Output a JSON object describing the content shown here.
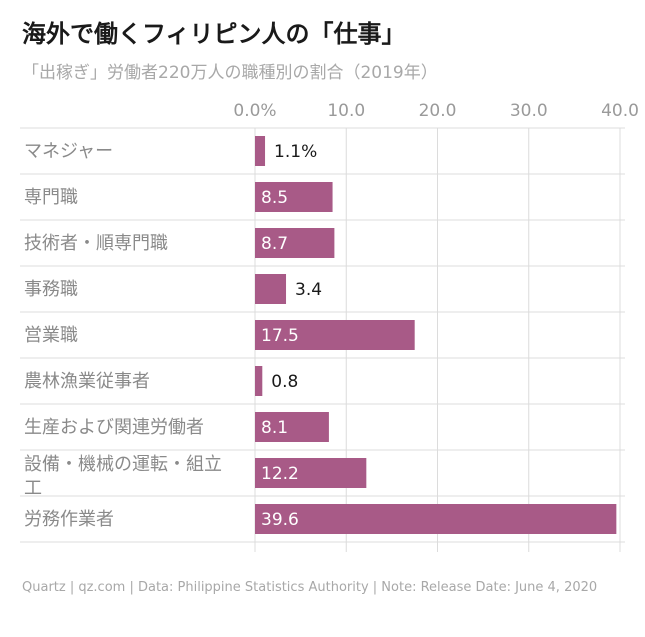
{
  "title": "海外で働くフィリピン人の「仕事」",
  "subtitle": "「出稼ぎ」労働者220万人の職種別の割合（2019年）",
  "footer": "Quartz | qz.com | Data: Philippine Statistics Authority | Note: Release Date: June 4, 2020",
  "colors": {
    "bar": "#a85a87",
    "grid": "#dcdcdc",
    "label_inside": "#ffffff",
    "label_outside": "#1a1a1a"
  },
  "chart_data": {
    "type": "bar",
    "orientation": "horizontal",
    "categories": [
      "マネジャー",
      "専門職",
      "技術者・順専門職",
      "事務職",
      "営業職",
      "農林漁業従事者",
      "生産および関連労働者",
      "設備・機械の運転・組立工",
      "労務作業者"
    ],
    "values": [
      1.1,
      8.5,
      8.7,
      3.4,
      17.5,
      0.8,
      8.1,
      12.2,
      39.6
    ],
    "value_labels": [
      "1.1%",
      "8.5",
      "8.7",
      "3.4",
      "17.5",
      "0.8",
      "8.1",
      "12.2",
      "39.6"
    ],
    "xticks": [
      "0.0%",
      "10.0",
      "20.0",
      "30.0",
      "40.0"
    ],
    "xlim": [
      0,
      40
    ],
    "title": "海外で働くフィリピン人の「仕事」",
    "subtitle": "「出稼ぎ」労働者220万人の職種別の割合（2019年）",
    "xlabel": "",
    "ylabel": "",
    "grid": true,
    "legend": false
  }
}
